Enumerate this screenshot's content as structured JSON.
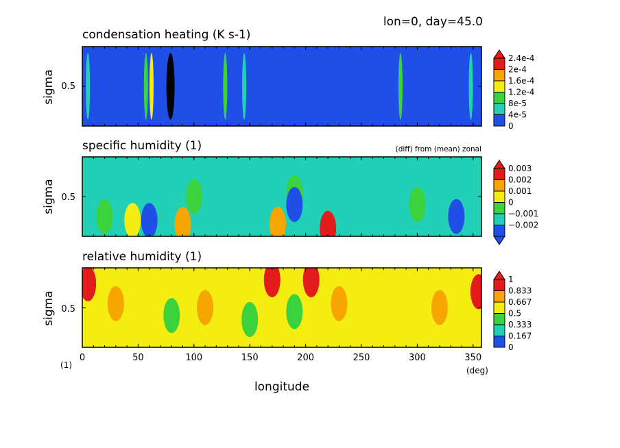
{
  "header": {
    "info": "lon=0, day=45.0"
  },
  "x_axis": {
    "label": "longitude",
    "unit": "(deg)",
    "corner_unit": "(1)",
    "ticks": [
      0,
      50,
      100,
      150,
      200,
      250,
      300,
      350
    ]
  },
  "chart_data": [
    {
      "type": "heatmap",
      "title": "condensation heating (K s-1)",
      "subtitle": "",
      "ylabel": "sigma",
      "xlim": [
        0,
        357.5
      ],
      "y_tick": "0.5",
      "background_color": "#1f4fe6",
      "legend": {
        "levels": [
          "0",
          "4e-5",
          "8e-5",
          "1.2e-4",
          "1.6e-4",
          "2e-4",
          "2.4e-4"
        ],
        "colors": [
          "#1f4fe6",
          "#21d0b6",
          "#3bd23d",
          "#f5ec12",
          "#f7a600",
          "#e31b1b"
        ],
        "arrow_top": true,
        "arrow_bottom": false
      },
      "features": [
        {
          "lon": 5,
          "sigma": 0.5,
          "level": 1
        },
        {
          "lon": 57,
          "sigma": 0.5,
          "level": 2
        },
        {
          "lon": 62,
          "sigma": 0.5,
          "level": 3
        },
        {
          "lon": 79,
          "sigma": 0.5,
          "level": 6
        },
        {
          "lon": 128,
          "sigma": 0.5,
          "level": 2
        },
        {
          "lon": 145,
          "sigma": 0.5,
          "level": 1
        },
        {
          "lon": 285,
          "sigma": 0.5,
          "level": 2
        },
        {
          "lon": 348,
          "sigma": 0.5,
          "level": 1
        }
      ]
    },
    {
      "type": "heatmap",
      "title": "specific humidity (1)",
      "subtitle": "(diff) from (mean) zonal",
      "ylabel": "sigma",
      "xlim": [
        0,
        357.5
      ],
      "y_tick": "0.5",
      "background_color": "#21d0b6",
      "legend": {
        "levels": [
          "−0.002",
          "−0.001",
          "0",
          "0.001",
          "0.002",
          "0.003"
        ],
        "colors": [
          "#1f4fe6",
          "#21d0b6",
          "#3bd23d",
          "#f5ec12",
          "#f7a600",
          "#e31b1b"
        ],
        "arrow_top": true,
        "arrow_bottom": true
      },
      "features": [
        {
          "lon": 20,
          "sigma": 0.75,
          "level": 2
        },
        {
          "lon": 100,
          "sigma": 0.5,
          "level": 2
        },
        {
          "lon": 190,
          "sigma": 0.45,
          "level": 2
        },
        {
          "lon": 300,
          "sigma": 0.6,
          "level": 2
        },
        {
          "lon": 45,
          "sigma": 0.8,
          "level": 3
        },
        {
          "lon": 90,
          "sigma": 0.85,
          "level": 4
        },
        {
          "lon": 175,
          "sigma": 0.85,
          "level": 4
        },
        {
          "lon": 220,
          "sigma": 0.9,
          "level": 5
        },
        {
          "lon": 60,
          "sigma": 0.8,
          "level": 0
        },
        {
          "lon": 190,
          "sigma": 0.6,
          "level": 0
        },
        {
          "lon": 335,
          "sigma": 0.75,
          "level": 0
        }
      ]
    },
    {
      "type": "heatmap",
      "title": "relative humidity (1)",
      "subtitle": "",
      "ylabel": "sigma",
      "xlim": [
        0,
        357.5
      ],
      "y_tick": "0.5",
      "background_color": "#f5ec12",
      "legend": {
        "levels": [
          "0",
          "0.167",
          "0.333",
          "0.5",
          "0.667",
          "0.833",
          "1"
        ],
        "colors": [
          "#1f4fe6",
          "#21d0b6",
          "#3bd23d",
          "#f5ec12",
          "#f7a600",
          "#e31b1b"
        ],
        "arrow_top": true,
        "arrow_bottom": false
      },
      "features": [
        {
          "lon": 30,
          "sigma": 0.45,
          "level": 4
        },
        {
          "lon": 110,
          "sigma": 0.5,
          "level": 4
        },
        {
          "lon": 230,
          "sigma": 0.45,
          "level": 4
        },
        {
          "lon": 320,
          "sigma": 0.5,
          "level": 4
        },
        {
          "lon": 80,
          "sigma": 0.6,
          "level": 2
        },
        {
          "lon": 150,
          "sigma": 0.65,
          "level": 2
        },
        {
          "lon": 190,
          "sigma": 0.55,
          "level": 2
        },
        {
          "lon": 5,
          "sigma": 0.2,
          "level": 5
        },
        {
          "lon": 170,
          "sigma": 0.15,
          "level": 5
        },
        {
          "lon": 205,
          "sigma": 0.15,
          "level": 5
        },
        {
          "lon": 355,
          "sigma": 0.3,
          "level": 5
        }
      ]
    }
  ]
}
